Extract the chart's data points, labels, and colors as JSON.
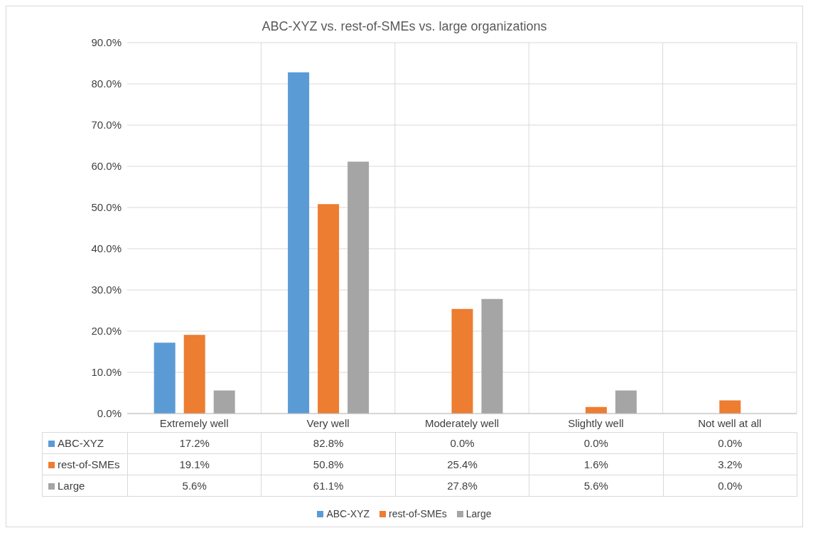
{
  "chart_data": {
    "type": "bar",
    "title": "ABC-XYZ vs. rest-of-SMEs vs. large organizations",
    "categories": [
      "Extremely well",
      "Very well",
      "Moderately well",
      "Slightly well",
      "Not well at all"
    ],
    "series": [
      {
        "name": "ABC-XYZ",
        "color": "#5b9bd5",
        "values": [
          17.2,
          82.8,
          0.0,
          0.0,
          0.0
        ],
        "value_labels": [
          "17.2%",
          "82.8%",
          "0.0%",
          "0.0%",
          "0.0%"
        ]
      },
      {
        "name": "rest-of-SMEs",
        "color": "#ed7d31",
        "values": [
          19.1,
          50.8,
          25.4,
          1.6,
          3.2
        ],
        "value_labels": [
          "19.1%",
          "50.8%",
          "25.4%",
          "1.6%",
          "3.2%"
        ]
      },
      {
        "name": "Large",
        "color": "#a5a5a5",
        "values": [
          5.6,
          61.1,
          27.8,
          5.6,
          0.0
        ],
        "value_labels": [
          "5.6%",
          "61.1%",
          "27.8%",
          "5.6%",
          "0.0%"
        ]
      }
    ],
    "ylim": [
      0,
      90
    ],
    "yticks": [
      {
        "value": 0,
        "label": "0.0%"
      },
      {
        "value": 10,
        "label": "10.0%"
      },
      {
        "value": 20,
        "label": "20.0%"
      },
      {
        "value": 30,
        "label": "30.0%"
      },
      {
        "value": 40,
        "label": "40.0%"
      },
      {
        "value": 50,
        "label": "50.0%"
      },
      {
        "value": 60,
        "label": "60.0%"
      },
      {
        "value": 70,
        "label": "70.0%"
      },
      {
        "value": 80,
        "label": "80.0%"
      },
      {
        "value": 90,
        "label": "90.0%"
      }
    ],
    "grid": true,
    "legend": "bottom"
  }
}
